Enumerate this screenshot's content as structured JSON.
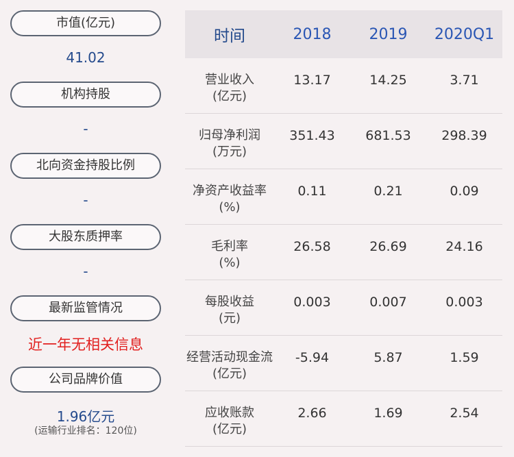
{
  "left_panel": {
    "items": [
      {
        "label": "市值(亿元)",
        "value": "41.02"
      },
      {
        "label": "机构持股",
        "value": "-"
      },
      {
        "label": "北向资金持股比例",
        "value": "-"
      },
      {
        "label": "大股东质押率",
        "value": "-"
      },
      {
        "label": "最新监管情况",
        "value": "近一年无相关信息"
      },
      {
        "label": "公司品牌价值",
        "value": "1.96亿元",
        "sub": "(运输行业排名：120位)"
      }
    ],
    "colors": {
      "value": "#244a8c",
      "alert": "#e1201f"
    }
  },
  "table": {
    "header": {
      "label": "时间",
      "years": [
        "2018",
        "2019",
        "2020Q1"
      ]
    },
    "rows": [
      {
        "name": "营业收入",
        "unit": "(亿元)",
        "values": [
          "13.17",
          "14.25",
          "3.71"
        ]
      },
      {
        "name": "归母净利润",
        "unit": "(万元)",
        "values": [
          "351.43",
          "681.53",
          "298.39"
        ]
      },
      {
        "name": "净资产收益率",
        "unit": "(%)",
        "values": [
          "0.11",
          "0.21",
          "0.09"
        ]
      },
      {
        "name": "毛利率",
        "unit": "(%)",
        "values": [
          "26.58",
          "26.69",
          "24.16"
        ]
      },
      {
        "name": "每股收益",
        "unit": "(元)",
        "values": [
          "0.003",
          "0.007",
          "0.003"
        ]
      },
      {
        "name": "经营活动现金流",
        "unit": "(亿元)",
        "values": [
          "-5.94",
          "5.87",
          "1.59"
        ]
      },
      {
        "name": "应收账款",
        "unit": "(亿元)",
        "values": [
          "2.66",
          "1.69",
          "2.54"
        ]
      }
    ]
  }
}
